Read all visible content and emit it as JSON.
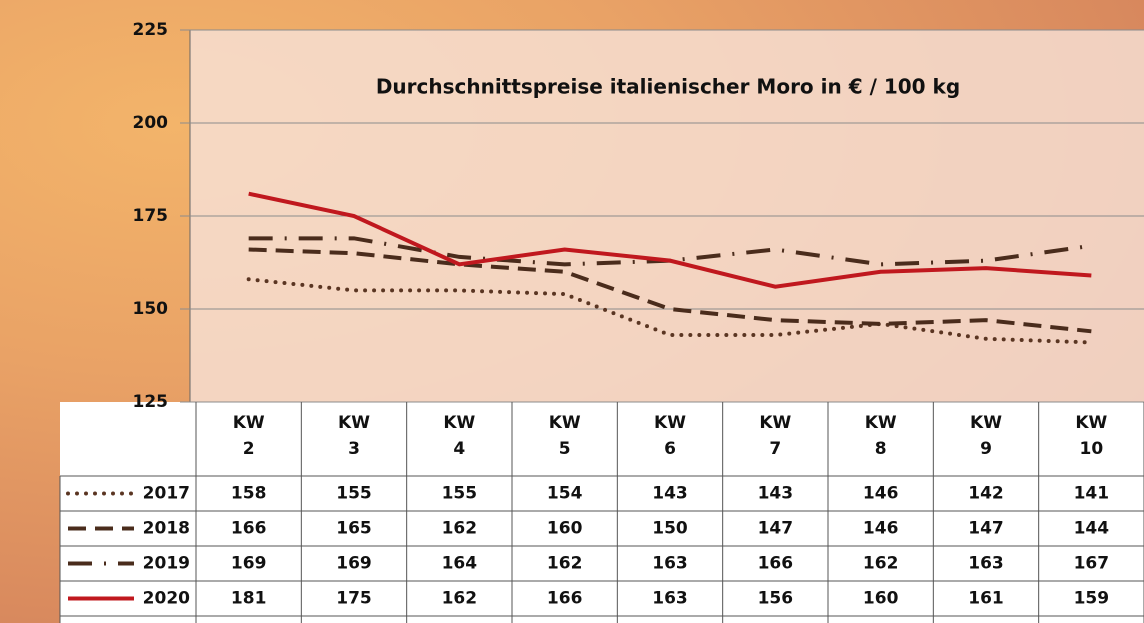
{
  "chart_data": {
    "type": "line",
    "title": "Durchschnittspreise italienischer Moro in € / 100 kg",
    "categories": [
      "KW 2",
      "KW 3",
      "KW 4",
      "KW 5",
      "KW 6",
      "KW 7",
      "KW 8",
      "KW 9",
      "KW 10"
    ],
    "series": [
      {
        "name": "2017",
        "color": "#5a3522",
        "line_style": "dotted",
        "values": [
          158,
          155,
          155,
          154,
          143,
          143,
          146,
          142,
          141
        ]
      },
      {
        "name": "2018",
        "color": "#4a2c1c",
        "line_style": "dashed",
        "values": [
          166,
          165,
          162,
          160,
          150,
          147,
          146,
          147,
          144
        ]
      },
      {
        "name": "2019",
        "color": "#4a2c1c",
        "line_style": "dashdot",
        "values": [
          169,
          169,
          164,
          162,
          163,
          166,
          162,
          163,
          167
        ]
      },
      {
        "name": "2020",
        "color": "#c0181e",
        "line_style": "solid",
        "values": [
          181,
          175,
          162,
          166,
          163,
          156,
          160,
          161,
          159
        ]
      }
    ],
    "ylim": [
      125,
      225
    ],
    "yticks": [
      125,
      150,
      175,
      200,
      225
    ],
    "grid": true
  }
}
